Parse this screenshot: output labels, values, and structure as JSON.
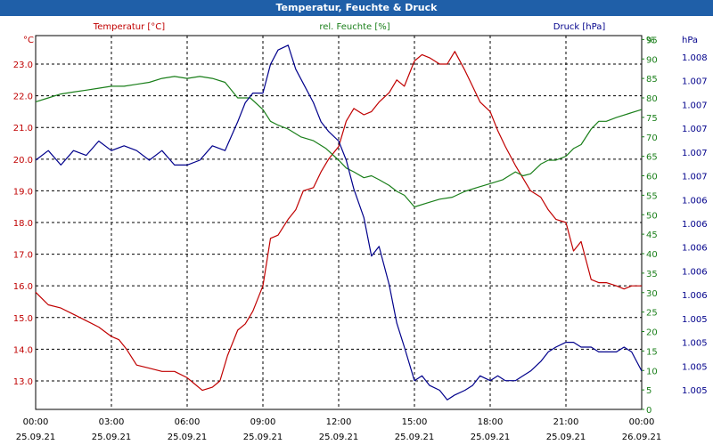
{
  "window": {
    "title": "Temperatur, Feuchte & Druck"
  },
  "colors": {
    "temperature": "#c00000",
    "humidity": "#1a7f1a",
    "pressure": "#00008b",
    "titlebar": "#1f5fa8"
  },
  "chart_data": {
    "type": "line",
    "title": "Temperatur, Feuchte & Druck",
    "grid": true,
    "x_ticks": [
      {
        "time": "00:00",
        "date": "25.09.21",
        "hour": 0
      },
      {
        "time": "03:00",
        "date": "25.09.21",
        "hour": 3
      },
      {
        "time": "06:00",
        "date": "25.09.21",
        "hour": 6
      },
      {
        "time": "09:00",
        "date": "25.09.21",
        "hour": 9
      },
      {
        "time": "12:00",
        "date": "25.09.21",
        "hour": 12
      },
      {
        "time": "15:00",
        "date": "25.09.21",
        "hour": 15
      },
      {
        "time": "18:00",
        "date": "25.09.21",
        "hour": 18
      },
      {
        "time": "21:00",
        "date": "25.09.21",
        "hour": 21
      },
      {
        "time": "00:00",
        "date": "26.09.21",
        "hour": 24
      }
    ],
    "axes": {
      "temperature": {
        "unit": "°C",
        "ylim": [
          12.1,
          23.9
        ],
        "ticks": [
          "13.0",
          "14.0",
          "15.0",
          "16.0",
          "17.0",
          "18.0",
          "19.0",
          "20.0",
          "21.0",
          "22.0",
          "23.0"
        ]
      },
      "humidity": {
        "unit": "%",
        "ylim": [
          0,
          96
        ],
        "ticks": [
          "0",
          "5",
          "10",
          "15",
          "20",
          "25",
          "30",
          "35",
          "40",
          "45",
          "50",
          "55",
          "60",
          "65",
          "70",
          "75",
          "80",
          "85",
          "90",
          "95"
        ]
      },
      "pressure": {
        "unit": "hPa",
        "ylim": [
          1004.3,
          1008.2
        ],
        "ticks": [
          "1.005",
          "1.005",
          "1.005",
          "1.005",
          "1.006",
          "1.006",
          "1.006",
          "1.006",
          "1.006",
          "1.007",
          "1.007",
          "1.007",
          "1.007",
          "1.007",
          "1.008"
        ]
      }
    },
    "series": [
      {
        "name": "Temperatur [°C]",
        "axis": "temperature",
        "points": [
          [
            0,
            15.8
          ],
          [
            0.25,
            15.6
          ],
          [
            0.5,
            15.4
          ],
          [
            1,
            15.3
          ],
          [
            1.5,
            15.1
          ],
          [
            2,
            14.9
          ],
          [
            2.5,
            14.7
          ],
          [
            3,
            14.4
          ],
          [
            3.3,
            14.3
          ],
          [
            3.6,
            14.0
          ],
          [
            4,
            13.5
          ],
          [
            4.5,
            13.4
          ],
          [
            5,
            13.3
          ],
          [
            5.5,
            13.3
          ],
          [
            6,
            13.1
          ],
          [
            6.3,
            12.9
          ],
          [
            6.6,
            12.7
          ],
          [
            7,
            12.8
          ],
          [
            7.3,
            13.0
          ],
          [
            7.6,
            13.8
          ],
          [
            8,
            14.6
          ],
          [
            8.3,
            14.8
          ],
          [
            8.6,
            15.2
          ],
          [
            9,
            16.0
          ],
          [
            9.3,
            17.5
          ],
          [
            9.6,
            17.6
          ],
          [
            10,
            18.1
          ],
          [
            10.3,
            18.4
          ],
          [
            10.6,
            19.0
          ],
          [
            11,
            19.1
          ],
          [
            11.3,
            19.6
          ],
          [
            11.6,
            20.0
          ],
          [
            12,
            20.4
          ],
          [
            12.3,
            21.2
          ],
          [
            12.6,
            21.6
          ],
          [
            13,
            21.4
          ],
          [
            13.3,
            21.5
          ],
          [
            13.6,
            21.8
          ],
          [
            14,
            22.1
          ],
          [
            14.3,
            22.5
          ],
          [
            14.6,
            22.3
          ],
          [
            15,
            23.1
          ],
          [
            15.3,
            23.3
          ],
          [
            15.6,
            23.2
          ],
          [
            16,
            23.0
          ],
          [
            16.3,
            23.0
          ],
          [
            16.6,
            23.4
          ],
          [
            17,
            22.8
          ],
          [
            17.3,
            22.3
          ],
          [
            17.6,
            21.8
          ],
          [
            18,
            21.5
          ],
          [
            18.3,
            20.9
          ],
          [
            18.6,
            20.4
          ],
          [
            19,
            19.8
          ],
          [
            19.3,
            19.4
          ],
          [
            19.6,
            19.0
          ],
          [
            20,
            18.8
          ],
          [
            20.3,
            18.4
          ],
          [
            20.6,
            18.1
          ],
          [
            21,
            18.0
          ],
          [
            21.3,
            17.1
          ],
          [
            21.6,
            17.4
          ],
          [
            22,
            16.2
          ],
          [
            22.3,
            16.1
          ],
          [
            22.6,
            16.1
          ],
          [
            23,
            16.0
          ],
          [
            23.3,
            15.9
          ],
          [
            23.6,
            16.0
          ],
          [
            24,
            16.0
          ]
        ]
      },
      {
        "name": "rel. Feuchte [%]",
        "axis": "humidity",
        "points": [
          [
            0,
            79
          ],
          [
            0.5,
            80
          ],
          [
            1,
            81
          ],
          [
            1.5,
            81.5
          ],
          [
            2,
            82
          ],
          [
            2.5,
            82.5
          ],
          [
            3,
            83
          ],
          [
            3.5,
            83
          ],
          [
            4,
            83.5
          ],
          [
            4.5,
            84
          ],
          [
            5,
            85
          ],
          [
            5.5,
            85.5
          ],
          [
            6,
            85
          ],
          [
            6.5,
            85.5
          ],
          [
            7,
            85
          ],
          [
            7.5,
            84
          ],
          [
            8,
            80
          ],
          [
            8.5,
            80
          ],
          [
            9,
            77
          ],
          [
            9.3,
            74
          ],
          [
            9.6,
            73
          ],
          [
            10,
            72
          ],
          [
            10.5,
            70
          ],
          [
            11,
            69
          ],
          [
            11.5,
            67
          ],
          [
            12,
            64
          ],
          [
            12.3,
            62
          ],
          [
            12.6,
            61
          ],
          [
            13,
            59.5
          ],
          [
            13.3,
            60
          ],
          [
            13.6,
            59
          ],
          [
            14,
            57.5
          ],
          [
            14.3,
            56
          ],
          [
            14.6,
            55
          ],
          [
            15,
            52
          ],
          [
            15.5,
            53
          ],
          [
            16,
            54
          ],
          [
            16.5,
            54.5
          ],
          [
            17,
            56
          ],
          [
            17.5,
            57
          ],
          [
            18,
            58
          ],
          [
            18.5,
            59
          ],
          [
            19,
            61
          ],
          [
            19.3,
            60
          ],
          [
            19.6,
            60.5
          ],
          [
            20,
            63
          ],
          [
            20.3,
            64
          ],
          [
            20.6,
            64
          ],
          [
            21,
            65
          ],
          [
            21.3,
            67
          ],
          [
            21.6,
            68
          ],
          [
            22,
            72
          ],
          [
            22.3,
            74
          ],
          [
            22.6,
            74
          ],
          [
            23,
            75
          ],
          [
            23.5,
            76
          ],
          [
            24,
            77
          ]
        ]
      },
      {
        "name": "Druck [hPa]",
        "axis": "pressure",
        "points": [
          [
            0,
            1006.9
          ],
          [
            0.5,
            1007.0
          ],
          [
            1,
            1006.85
          ],
          [
            1.5,
            1007.0
          ],
          [
            2,
            1006.95
          ],
          [
            2.5,
            1007.1
          ],
          [
            3,
            1007.0
          ],
          [
            3.5,
            1007.05
          ],
          [
            4,
            1007.0
          ],
          [
            4.5,
            1006.9
          ],
          [
            5,
            1007.0
          ],
          [
            5.5,
            1006.85
          ],
          [
            6,
            1006.85
          ],
          [
            6.5,
            1006.9
          ],
          [
            7,
            1007.05
          ],
          [
            7.5,
            1007.0
          ],
          [
            8,
            1007.3
          ],
          [
            8.3,
            1007.5
          ],
          [
            8.6,
            1007.6
          ],
          [
            9,
            1007.6
          ],
          [
            9.3,
            1007.9
          ],
          [
            9.6,
            1008.05
          ],
          [
            10,
            1008.1
          ],
          [
            10.3,
            1007.85
          ],
          [
            10.6,
            1007.7
          ],
          [
            11,
            1007.5
          ],
          [
            11.3,
            1007.3
          ],
          [
            11.6,
            1007.2
          ],
          [
            12,
            1007.1
          ],
          [
            12.3,
            1006.9
          ],
          [
            12.6,
            1006.6
          ],
          [
            13,
            1006.3
          ],
          [
            13.3,
            1005.9
          ],
          [
            13.6,
            1006.0
          ],
          [
            14,
            1005.6
          ],
          [
            14.3,
            1005.2
          ],
          [
            14.6,
            1004.95
          ],
          [
            15,
            1004.6
          ],
          [
            15.3,
            1004.65
          ],
          [
            15.6,
            1004.55
          ],
          [
            16,
            1004.5
          ],
          [
            16.3,
            1004.4
          ],
          [
            16.6,
            1004.45
          ],
          [
            17,
            1004.5
          ],
          [
            17.3,
            1004.55
          ],
          [
            17.6,
            1004.65
          ],
          [
            18,
            1004.6
          ],
          [
            18.3,
            1004.65
          ],
          [
            18.6,
            1004.6
          ],
          [
            19,
            1004.6
          ],
          [
            19.3,
            1004.65
          ],
          [
            19.6,
            1004.7
          ],
          [
            20,
            1004.8
          ],
          [
            20.3,
            1004.9
          ],
          [
            20.6,
            1004.95
          ],
          [
            21,
            1005.0
          ],
          [
            21.3,
            1005.0
          ],
          [
            21.6,
            1004.95
          ],
          [
            22,
            1004.95
          ],
          [
            22.3,
            1004.9
          ],
          [
            22.6,
            1004.9
          ],
          [
            23,
            1004.9
          ],
          [
            23.3,
            1004.95
          ],
          [
            23.6,
            1004.9
          ],
          [
            24,
            1004.7
          ]
        ]
      }
    ]
  }
}
